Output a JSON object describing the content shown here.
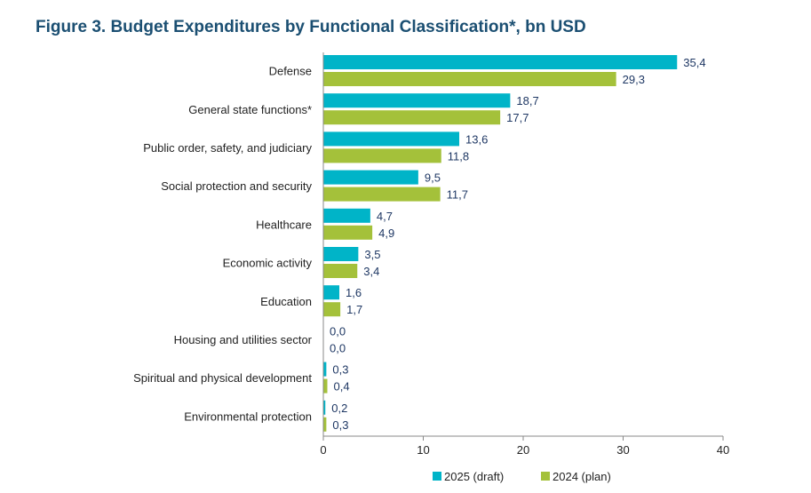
{
  "title": "Figure 3. Budget Expenditures by Functional Classification*, bn USD",
  "colors": {
    "title": "#1b4f72",
    "series_2025": "#00b4c8",
    "series_2024": "#a4c13a",
    "label": "#1f3864",
    "axis": "#555555"
  },
  "chart_data": {
    "type": "bar",
    "orientation": "horizontal",
    "categories": [
      "Defense",
      "General state functions*",
      "Public order, safety, and judiciary",
      "Social protection and security",
      "Healthcare",
      "Economic activity",
      "Education",
      "Housing and utilities sector",
      "Spiritual and physical development",
      "Environmental protection"
    ],
    "series": [
      {
        "name": "2025 (draft)",
        "values": [
          35.4,
          18.7,
          13.6,
          9.5,
          4.7,
          3.5,
          1.6,
          0.0,
          0.3,
          0.2
        ],
        "labels": [
          "35,4",
          "18,7",
          "13,6",
          "9,5",
          "4,7",
          "3,5",
          "1,6",
          "0,0",
          "0,3",
          "0,2"
        ]
      },
      {
        "name": "2024 (plan)",
        "values": [
          29.3,
          17.7,
          11.8,
          11.7,
          4.9,
          3.4,
          1.7,
          0.0,
          0.4,
          0.3
        ],
        "labels": [
          "29,3",
          "17,7",
          "11,8",
          "11,7",
          "4,9",
          "3,4",
          "1,7",
          "0,0",
          "0,4",
          "0,3"
        ]
      }
    ],
    "xlim": [
      0,
      40
    ],
    "xticks": [
      0,
      10,
      20,
      30,
      40
    ],
    "grid": false,
    "legend": "bottom"
  }
}
